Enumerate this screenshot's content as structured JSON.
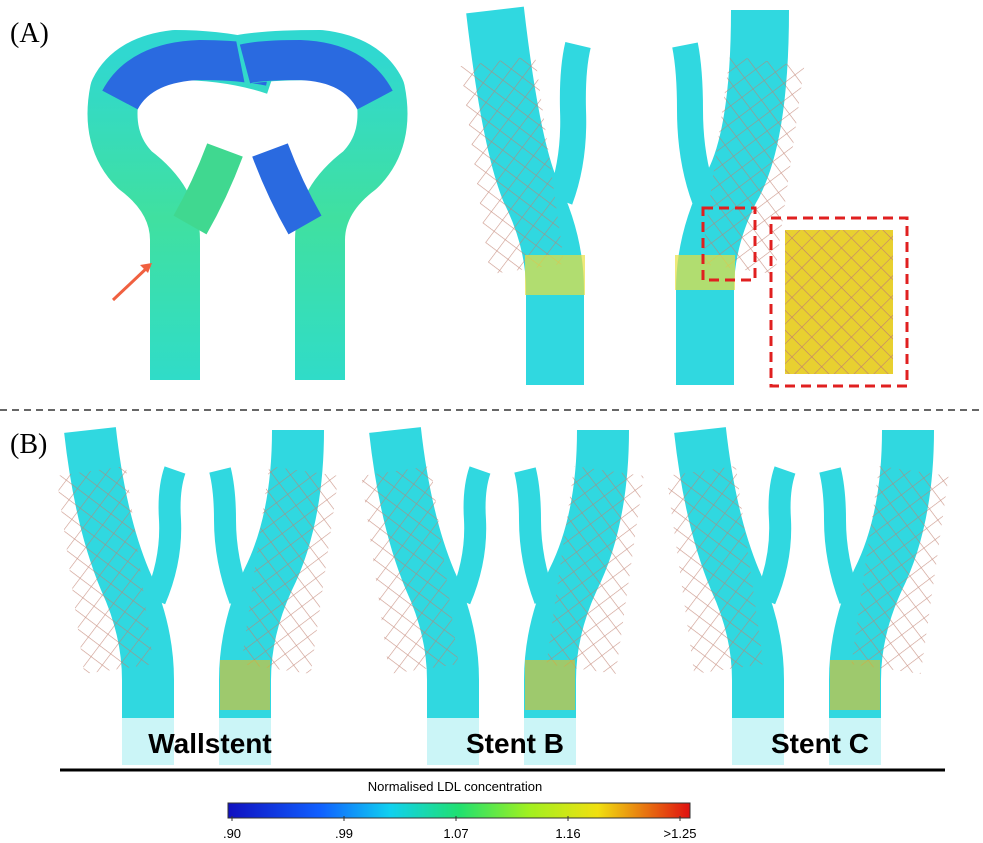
{
  "figure": {
    "panel_a_label": "(A)",
    "panel_b_label": "(B)",
    "stents": [
      "Wallstent",
      "Stent B",
      "Stent C"
    ],
    "colorbar": {
      "title": "Normalised LDL concentration",
      "ticks": [
        ".90",
        ".99",
        "1.07",
        "1.16",
        ">1.25"
      ]
    }
  }
}
